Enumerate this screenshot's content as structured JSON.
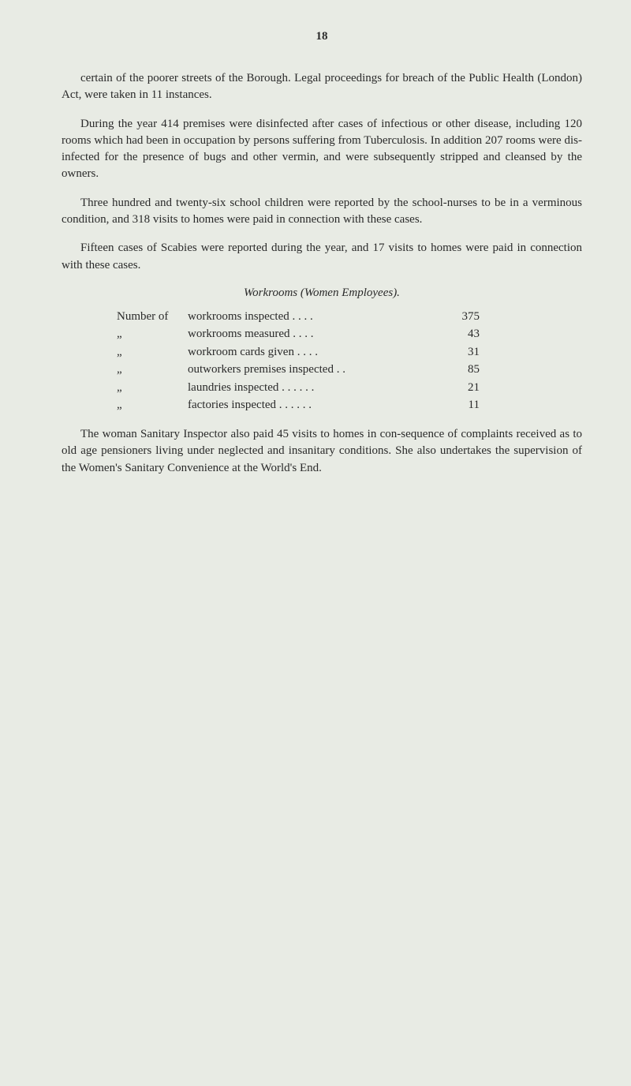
{
  "page_number": "18",
  "paragraphs": {
    "p1": "certain of the poorer streets of the Borough. Legal proceedings for breach of the Public Health (London) Act, were taken in 11 instances.",
    "p2": "During the year 414 premises were disinfected after cases of infectious or other disease, including 120 rooms which had been in occupation by persons suffering from Tuberculosis. In addition 207 rooms were dis-infected for the presence of bugs and other vermin, and were subsequently stripped and cleansed by the owners.",
    "p3": "Three hundred and twenty-six school children were reported by the school-nurses to be in a verminous condition, and 318 visits to homes were paid in connection with these cases.",
    "p4": "Fifteen cases of Scabies were reported during the year, and 17 visits to homes were paid in connection with these cases.",
    "p5": "The woman Sanitary Inspector also paid 45 visits to homes in con-sequence of complaints received as to old age pensioners living under neglected and insanitary conditions. She also undertakes the supervision of the Women's Sanitary Convenience at the World's End."
  },
  "section_heading": "Workrooms (Women Employees).",
  "workroom_rows": [
    {
      "leader": "Number of",
      "detail": "workrooms inspected     . .    . .",
      "value": "375"
    },
    {
      "leader": "„",
      "detail": "workrooms measured     . .    . .",
      "value": "43"
    },
    {
      "leader": "„",
      "detail": "workroom cards given     . .    . .",
      "value": "31"
    },
    {
      "leader": "„",
      "detail": "outworkers premises inspected    . .",
      "value": "85"
    },
    {
      "leader": "„",
      "detail": "laundries inspected  . .    . .    . .",
      "value": "21"
    },
    {
      "leader": "„",
      "detail": "factories inspected  . .    . .    . .",
      "value": "11"
    }
  ],
  "colors": {
    "background": "#e8ebe4",
    "text": "#2a2a2a"
  }
}
